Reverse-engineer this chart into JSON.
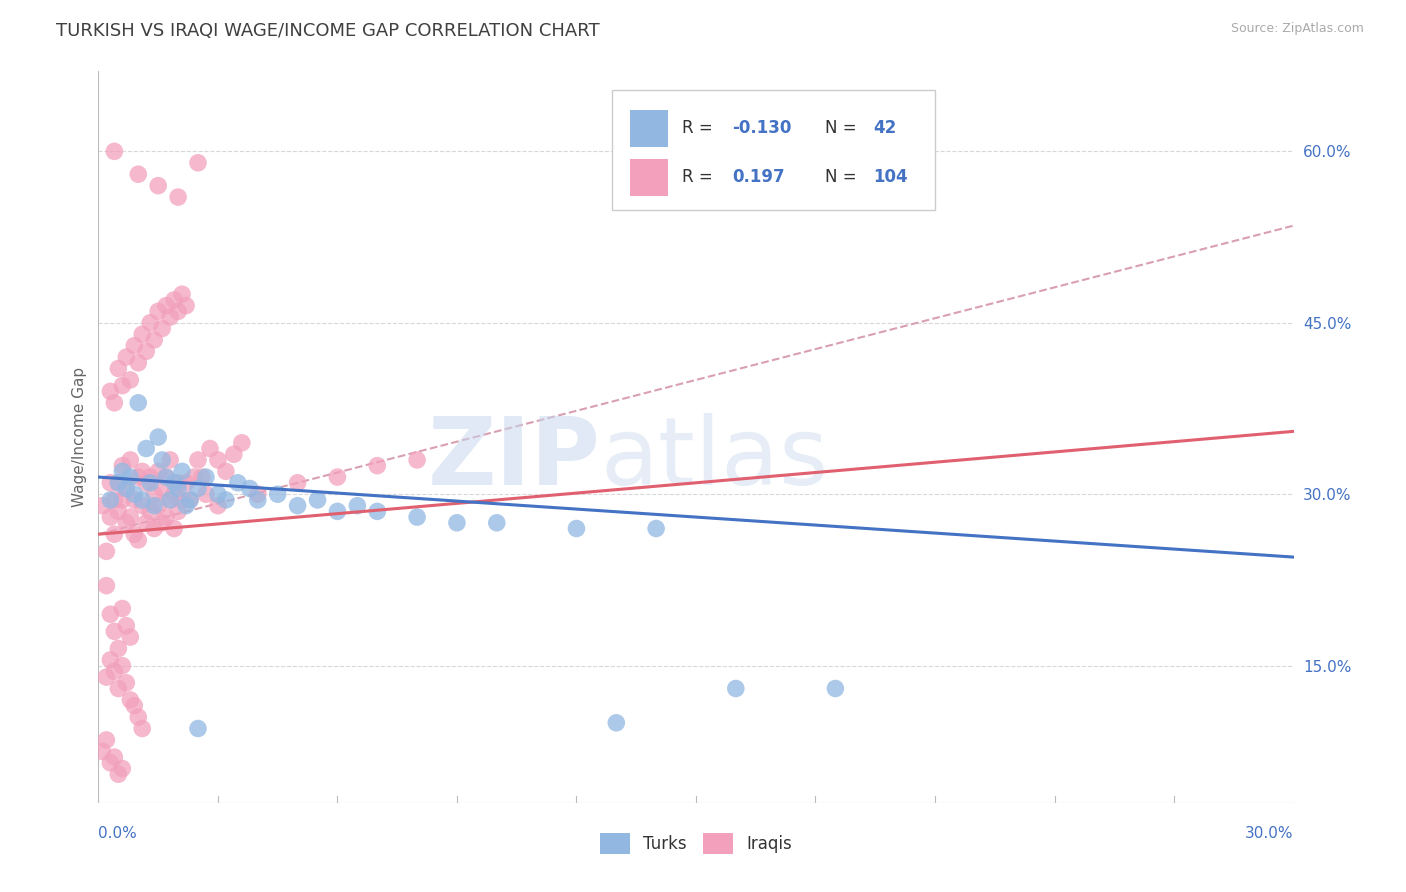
{
  "title": "TURKISH VS IRAQI WAGE/INCOME GAP CORRELATION CHART",
  "source": "Source: ZipAtlas.com",
  "ylabel": "Wage/Income Gap",
  "y_ticks": [
    0.15,
    0.3,
    0.45,
    0.6
  ],
  "y_tick_labels": [
    "15.0%",
    "30.0%",
    "45.0%",
    "60.0%"
  ],
  "xlim": [
    0.0,
    0.3
  ],
  "ylim": [
    0.03,
    0.67
  ],
  "turks_color": "#92b8e2",
  "iraqis_color": "#f2a0bb",
  "turks_line_color": "#4472c4",
  "iraqis_line_color": "#e06070",
  "overall_line_color": "#d8a0b0",
  "background_color": "#ffffff",
  "grid_color": "#d8d8d8",
  "title_color": "#404040",
  "legend_text_color": "#4472c4",
  "axis_label_color": "#4472c4",
  "watermark_text": "ZIPatlas",
  "turks_line_x0": 0.0,
  "turks_line_x1": 0.3,
  "turks_line_y0": 0.315,
  "turks_line_y1": 0.245,
  "iraqis_line_x0": 0.0,
  "iraqis_line_x1": 0.3,
  "iraqis_line_y0": 0.265,
  "iraqis_line_y1": 0.355,
  "overall_line_x0": 0.0,
  "overall_line_x1": 0.3,
  "overall_line_y0": 0.265,
  "overall_line_y1": 0.535,
  "turks_x": [
    0.003,
    0.005,
    0.006,
    0.007,
    0.008,
    0.009,
    0.01,
    0.011,
    0.012,
    0.013,
    0.014,
    0.015,
    0.016,
    0.017,
    0.018,
    0.019,
    0.02,
    0.021,
    0.022,
    0.023,
    0.025,
    0.027,
    0.03,
    0.032,
    0.035,
    0.038,
    0.04,
    0.045,
    0.05,
    0.055,
    0.06,
    0.065,
    0.07,
    0.08,
    0.09,
    0.1,
    0.12,
    0.14,
    0.16,
    0.185,
    0.13,
    0.025
  ],
  "turks_y": [
    0.295,
    0.31,
    0.32,
    0.305,
    0.315,
    0.3,
    0.38,
    0.295,
    0.34,
    0.31,
    0.29,
    0.35,
    0.33,
    0.315,
    0.295,
    0.31,
    0.305,
    0.32,
    0.29,
    0.295,
    0.305,
    0.315,
    0.3,
    0.295,
    0.31,
    0.305,
    0.295,
    0.3,
    0.29,
    0.295,
    0.285,
    0.29,
    0.285,
    0.28,
    0.275,
    0.275,
    0.27,
    0.27,
    0.13,
    0.13,
    0.1,
    0.095
  ],
  "iraqis_x": [
    0.001,
    0.002,
    0.003,
    0.003,
    0.004,
    0.004,
    0.005,
    0.005,
    0.006,
    0.006,
    0.007,
    0.007,
    0.008,
    0.008,
    0.009,
    0.009,
    0.01,
    0.01,
    0.011,
    0.011,
    0.012,
    0.012,
    0.013,
    0.013,
    0.014,
    0.014,
    0.015,
    0.015,
    0.016,
    0.016,
    0.017,
    0.017,
    0.018,
    0.018,
    0.019,
    0.019,
    0.02,
    0.02,
    0.021,
    0.022,
    0.023,
    0.024,
    0.025,
    0.026,
    0.027,
    0.028,
    0.03,
    0.032,
    0.034,
    0.036,
    0.003,
    0.004,
    0.005,
    0.006,
    0.007,
    0.008,
    0.009,
    0.01,
    0.011,
    0.012,
    0.013,
    0.014,
    0.015,
    0.016,
    0.017,
    0.018,
    0.019,
    0.02,
    0.021,
    0.022,
    0.002,
    0.003,
    0.004,
    0.005,
    0.006,
    0.007,
    0.008,
    0.002,
    0.003,
    0.004,
    0.005,
    0.006,
    0.007,
    0.008,
    0.009,
    0.01,
    0.011,
    0.001,
    0.002,
    0.003,
    0.004,
    0.005,
    0.006,
    0.03,
    0.04,
    0.05,
    0.06,
    0.07,
    0.08,
    0.01,
    0.015,
    0.02,
    0.025,
    0.004
  ],
  "iraqis_y": [
    0.29,
    0.25,
    0.28,
    0.31,
    0.265,
    0.295,
    0.31,
    0.285,
    0.295,
    0.325,
    0.275,
    0.305,
    0.28,
    0.33,
    0.265,
    0.295,
    0.315,
    0.26,
    0.29,
    0.32,
    0.275,
    0.31,
    0.285,
    0.315,
    0.27,
    0.3,
    0.29,
    0.32,
    0.275,
    0.305,
    0.315,
    0.28,
    0.295,
    0.33,
    0.27,
    0.3,
    0.31,
    0.285,
    0.295,
    0.31,
    0.295,
    0.315,
    0.33,
    0.315,
    0.3,
    0.34,
    0.33,
    0.32,
    0.335,
    0.345,
    0.39,
    0.38,
    0.41,
    0.395,
    0.42,
    0.4,
    0.43,
    0.415,
    0.44,
    0.425,
    0.45,
    0.435,
    0.46,
    0.445,
    0.465,
    0.455,
    0.47,
    0.46,
    0.475,
    0.465,
    0.22,
    0.195,
    0.18,
    0.165,
    0.2,
    0.185,
    0.175,
    0.14,
    0.155,
    0.145,
    0.13,
    0.15,
    0.135,
    0.12,
    0.115,
    0.105,
    0.095,
    0.075,
    0.085,
    0.065,
    0.07,
    0.055,
    0.06,
    0.29,
    0.3,
    0.31,
    0.315,
    0.325,
    0.33,
    0.58,
    0.57,
    0.56,
    0.59,
    0.6
  ]
}
